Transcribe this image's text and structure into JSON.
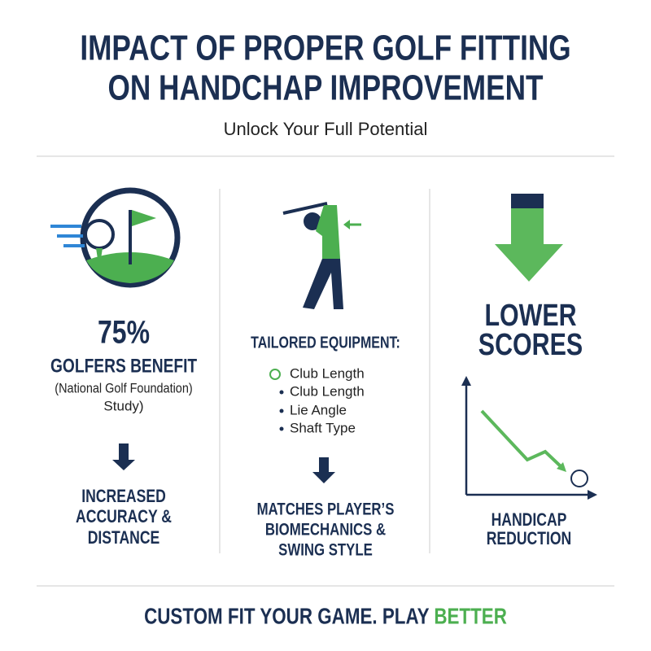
{
  "header": {
    "title_lines": [
      "IMPACT OF PROPER GOLF FITTING",
      "ON HANDCHAP IMPROVEMENT"
    ],
    "subtitle": "Unlock Your Full Potential"
  },
  "columns": [
    {
      "stat": "75%",
      "heading": "GOLFERS BENEFIT",
      "source_lines": [
        "(National Golf Foundation)",
        "Study)"
      ],
      "result_lines": [
        "INCREASED",
        "ACCURACY &",
        "DISTANCE"
      ]
    },
    {
      "heading": "TAILORED EQUIPMENT:",
      "items": [
        "Club Length",
        "Club Length",
        "Lie Angle",
        "Shaft Type"
      ],
      "result_lines": [
        "MATCHES PLAYER’S",
        "BIOMECHANICS &",
        "SWING STYLE"
      ]
    },
    {
      "heading_lines": [
        "LOWER",
        "SCORES"
      ],
      "result_lines": [
        "HANDICAP",
        "REDUCTION"
      ]
    }
  ],
  "footer": {
    "text": "CUSTOM FIT YOUR GAME. PLAY ",
    "highlight": "BETTER"
  }
}
